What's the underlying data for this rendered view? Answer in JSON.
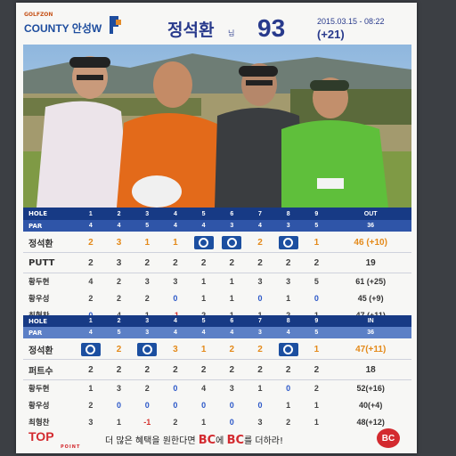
{
  "header": {
    "logo_small": "GOLFZON",
    "logo_main": "COUNTY 안성W",
    "player_name": "정석환",
    "player_suffix": "님",
    "total_score": "93",
    "date_time": "2015.03.15 - 08:22",
    "score_diff": "(+21)"
  },
  "colors": {
    "header_blue": "#283a8c",
    "table_dark": "#173a85",
    "table_blue": "#2f55a8",
    "eagle_box": "#1c4fa0",
    "orange": "#e48a1a",
    "red": "#d32a2f"
  },
  "front": {
    "hole_label": "HOLE",
    "holes": [
      "1",
      "2",
      "3",
      "4",
      "5",
      "6",
      "7",
      "8",
      "9"
    ],
    "hole_total_label": "OUT",
    "par_label": "PAR",
    "pars": [
      "4",
      "4",
      "5",
      "4",
      "4",
      "3",
      "4",
      "3",
      "5"
    ],
    "par_total": "36",
    "main_player": {
      "name": "정석환",
      "scores": [
        "2",
        "3",
        "1",
        "1",
        "◯",
        "◯",
        "2",
        "◯",
        "1"
      ],
      "total": "46 (+10)"
    },
    "putt": {
      "label": "PUTT",
      "scores": [
        "2",
        "3",
        "2",
        "2",
        "2",
        "2",
        "2",
        "2",
        "2"
      ],
      "total": "19"
    },
    "others": [
      {
        "name": "황두현",
        "scores": [
          "4",
          "2",
          "3",
          "3",
          "1",
          "1",
          "3",
          "3",
          "5"
        ],
        "total": "61 (+25)"
      },
      {
        "name": "황우성",
        "scores": [
          "2",
          "2",
          "2",
          "0",
          "1",
          "1",
          "0",
          "1",
          "0"
        ],
        "total": "45 (+9)"
      },
      {
        "name": "최형찬",
        "scores": [
          "0",
          "4",
          "1",
          "-1",
          "2",
          "1",
          "1",
          "2",
          "1"
        ],
        "total": "47 (+11)"
      }
    ]
  },
  "back": {
    "hole_label": "HOLE",
    "holes": [
      "1",
      "2",
      "3",
      "4",
      "5",
      "6",
      "7",
      "8",
      "9"
    ],
    "hole_total_label": "IN",
    "par_label": "PAR",
    "pars": [
      "4",
      "5",
      "3",
      "4",
      "4",
      "4",
      "3",
      "4",
      "5"
    ],
    "par_total": "36",
    "main_player": {
      "name": "정석환",
      "scores": [
        "◯",
        "2",
        "◯",
        "3",
        "1",
        "2",
        "2",
        "◯",
        "1"
      ],
      "total": "47(+11)"
    },
    "putt": {
      "label": "퍼트수",
      "scores": [
        "2",
        "2",
        "2",
        "2",
        "2",
        "2",
        "2",
        "2",
        "2"
      ],
      "total": "18"
    },
    "others": [
      {
        "name": "황두현",
        "scores": [
          "1",
          "3",
          "2",
          "0",
          "4",
          "3",
          "1",
          "0",
          "2"
        ],
        "total": "52(+16)"
      },
      {
        "name": "황우성",
        "scores": [
          "2",
          "0",
          "0",
          "0",
          "0",
          "0",
          "0",
          "1",
          "1"
        ],
        "total": "40(+4)"
      },
      {
        "name": "최형찬",
        "scores": [
          "3",
          "1",
          "-1",
          "2",
          "1",
          "0",
          "3",
          "2",
          "1"
        ],
        "total": "48(+12)"
      }
    ]
  },
  "footer": {
    "top_logo": "TOP",
    "top_sub": "POINT",
    "ad_prefix": "더 많은 혜택을 원한다면 ",
    "ad_bc1": "BC",
    "ad_mid": "에 ",
    "ad_bc2": "BC",
    "ad_suffix": "를 더하라!",
    "badge": "BC"
  }
}
